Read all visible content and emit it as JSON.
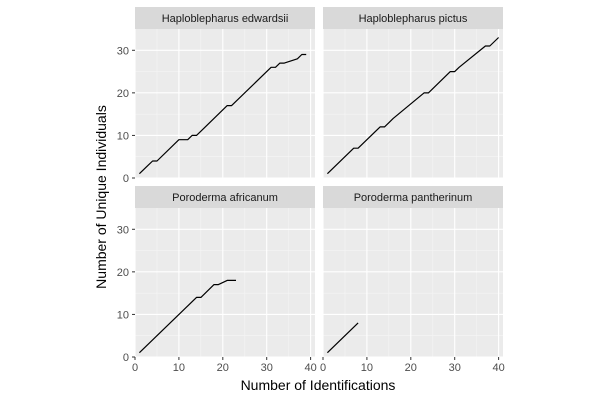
{
  "chart_data": {
    "type": "line",
    "xlabel": "Number of Identifications",
    "ylabel": "Number of Unique Individuals",
    "xlim": [
      0,
      41
    ],
    "ylim": [
      0,
      35
    ],
    "x_ticks": [
      0,
      10,
      20,
      30,
      40
    ],
    "y_ticks": [
      0,
      10,
      20,
      30
    ],
    "grid": true,
    "panels": [
      {
        "title": "Haploblepharus edwardsii",
        "x": [
          1,
          3,
          4,
          5,
          10,
          11,
          12,
          13,
          14,
          15,
          21,
          22,
          31,
          32,
          33,
          34,
          37,
          38,
          39
        ],
        "y": [
          1,
          3,
          4,
          4,
          9,
          9,
          9,
          10,
          10,
          11,
          17,
          17,
          26,
          26,
          27,
          27,
          28,
          29,
          29
        ]
      },
      {
        "title": "Haploblepharus pictus",
        "x": [
          1,
          7,
          8,
          13,
          14,
          15,
          16,
          23,
          24,
          29,
          30,
          31,
          37,
          38,
          40
        ],
        "y": [
          1,
          7,
          7,
          12,
          12,
          13,
          14,
          20,
          20,
          25,
          25,
          26,
          31,
          31,
          33
        ]
      },
      {
        "title": "Poroderma africanum",
        "x": [
          1,
          14,
          15,
          18,
          19,
          21,
          23
        ],
        "y": [
          1,
          14,
          14,
          17,
          17,
          18,
          18
        ]
      },
      {
        "title": "Poroderma pantherinum",
        "x": [
          1,
          8
        ],
        "y": [
          1,
          8
        ]
      }
    ]
  }
}
